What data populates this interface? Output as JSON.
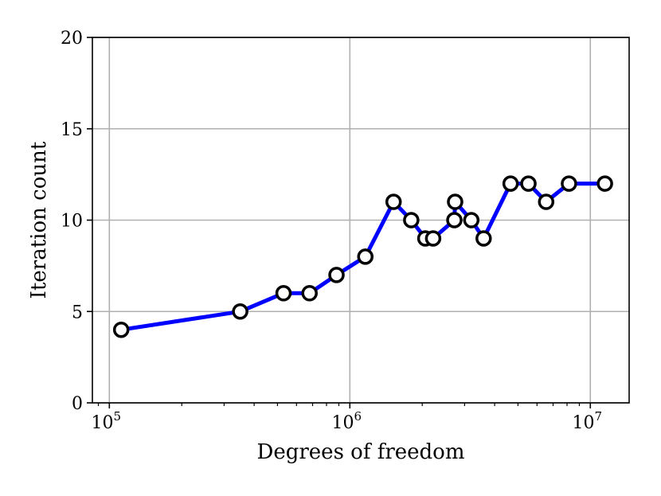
{
  "chart_data": {
    "type": "line",
    "xlabel": "Degrees of freedom",
    "ylabel": "Iteration count",
    "xscale": "log",
    "xlim": [
      85000,
      14500000
    ],
    "ylim": [
      0,
      20
    ],
    "grid": true,
    "x_ticks": [
      {
        "value": 100000,
        "base": "10",
        "exp": "5"
      },
      {
        "value": 1000000,
        "base": "10",
        "exp": "6"
      },
      {
        "value": 10000000,
        "base": "10",
        "exp": "7"
      }
    ],
    "y_ticks": [
      {
        "value": 0,
        "label": "0"
      },
      {
        "value": 5,
        "label": "5"
      },
      {
        "value": 10,
        "label": "10"
      },
      {
        "value": 15,
        "label": "15"
      },
      {
        "value": 20,
        "label": "20"
      }
    ],
    "series": [
      {
        "color": "#0000ff",
        "marker_edge_color": "#000000",
        "x": [
          112000,
          350000,
          530000,
          680000,
          880000,
          1160000,
          1520000,
          1800000,
          2060000,
          2220000,
          2720000,
          2740000,
          3200000,
          3600000,
          4660000,
          5530000,
          6550000,
          8150000,
          11500000
        ],
        "y": [
          4,
          5,
          6,
          6,
          7,
          8,
          11,
          10,
          9,
          9,
          10,
          11,
          10,
          9,
          12,
          12,
          11,
          12,
          12
        ]
      }
    ]
  }
}
